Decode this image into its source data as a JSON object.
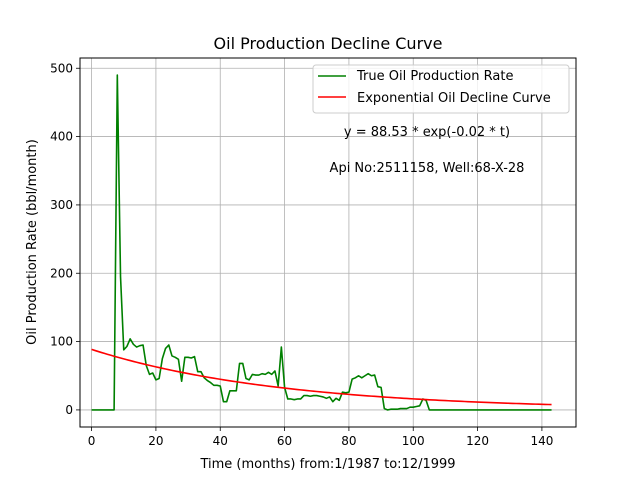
{
  "chart_data": {
    "type": "line",
    "title": "Oil Production Decline Curve",
    "xlabel": "Time (months) from:1/1987 to:12/1999",
    "ylabel": "Oil Production Rate (bbl/month)",
    "xlim": [
      -3.6,
      150.6
    ],
    "ylim": [
      -25,
      515
    ],
    "xticks": [
      0,
      20,
      40,
      60,
      80,
      100,
      120,
      140
    ],
    "yticks": [
      0,
      100,
      200,
      300,
      400,
      500
    ],
    "grid": true,
    "legend_position": "top-right",
    "annotations": [
      "y = 88.53 * exp(-0.02 * t)",
      "Api No:2511158, Well:68-X-28"
    ],
    "series": [
      {
        "name": "True Oil Production Rate",
        "color": "#008000",
        "points": [
          [
            0,
            0
          ],
          [
            1,
            0
          ],
          [
            2,
            0
          ],
          [
            3,
            0
          ],
          [
            4,
            0
          ],
          [
            5,
            0
          ],
          [
            6,
            0
          ],
          [
            7,
            0
          ],
          [
            8,
            490
          ],
          [
            9,
            195
          ],
          [
            10,
            88
          ],
          [
            11,
            93
          ],
          [
            12,
            104
          ],
          [
            13,
            96
          ],
          [
            14,
            92
          ],
          [
            15,
            94
          ],
          [
            16,
            95
          ],
          [
            17,
            65
          ],
          [
            18,
            52
          ],
          [
            19,
            54
          ],
          [
            20,
            44
          ],
          [
            21,
            46
          ],
          [
            22,
            75
          ],
          [
            23,
            90
          ],
          [
            24,
            95
          ],
          [
            25,
            79
          ],
          [
            26,
            77
          ],
          [
            27,
            74
          ],
          [
            28,
            42
          ],
          [
            29,
            77
          ],
          [
            30,
            77
          ],
          [
            31,
            76
          ],
          [
            32,
            78
          ],
          [
            33,
            56
          ],
          [
            34,
            56
          ],
          [
            35,
            47
          ],
          [
            36,
            43
          ],
          [
            37,
            40
          ],
          [
            38,
            36
          ],
          [
            39,
            36
          ],
          [
            40,
            35
          ],
          [
            41,
            12
          ],
          [
            42,
            12
          ],
          [
            43,
            28
          ],
          [
            44,
            28
          ],
          [
            45,
            28
          ],
          [
            46,
            68
          ],
          [
            47,
            68
          ],
          [
            48,
            46
          ],
          [
            49,
            44
          ],
          [
            50,
            52
          ],
          [
            51,
            51
          ],
          [
            52,
            51
          ],
          [
            53,
            53
          ],
          [
            54,
            52
          ],
          [
            55,
            55
          ],
          [
            56,
            52
          ],
          [
            57,
            57
          ],
          [
            58,
            35
          ],
          [
            59,
            92
          ],
          [
            60,
            33
          ],
          [
            61,
            16
          ],
          [
            62,
            16
          ],
          [
            63,
            15
          ],
          [
            64,
            16
          ],
          [
            65,
            16
          ],
          [
            66,
            21
          ],
          [
            67,
            21
          ],
          [
            68,
            20
          ],
          [
            69,
            21
          ],
          [
            70,
            21
          ],
          [
            71,
            20
          ],
          [
            72,
            19
          ],
          [
            73,
            17
          ],
          [
            74,
            19
          ],
          [
            75,
            12
          ],
          [
            76,
            17
          ],
          [
            77,
            14
          ],
          [
            78,
            26
          ],
          [
            79,
            25
          ],
          [
            80,
            26
          ],
          [
            81,
            45
          ],
          [
            82,
            47
          ],
          [
            83,
            50
          ],
          [
            84,
            47
          ],
          [
            85,
            50
          ],
          [
            86,
            53
          ],
          [
            87,
            50
          ],
          [
            88,
            51
          ],
          [
            89,
            34
          ],
          [
            90,
            33
          ],
          [
            91,
            2
          ],
          [
            92,
            0
          ],
          [
            93,
            1
          ],
          [
            94,
            1
          ],
          [
            95,
            1
          ],
          [
            96,
            2
          ],
          [
            97,
            2
          ],
          [
            98,
            2
          ],
          [
            99,
            4
          ],
          [
            100,
            4
          ],
          [
            101,
            5
          ],
          [
            102,
            6
          ],
          [
            103,
            16
          ],
          [
            104,
            14
          ],
          [
            105,
            0
          ],
          [
            106,
            0
          ],
          [
            107,
            0
          ],
          [
            108,
            0
          ],
          [
            109,
            0
          ],
          [
            110,
            0
          ],
          [
            111,
            0
          ],
          [
            112,
            0
          ],
          [
            113,
            0
          ],
          [
            114,
            0
          ],
          [
            115,
            0
          ],
          [
            116,
            0
          ],
          [
            117,
            0
          ],
          [
            118,
            0
          ],
          [
            119,
            0
          ],
          [
            120,
            0
          ],
          [
            121,
            0
          ],
          [
            122,
            0
          ],
          [
            123,
            0
          ],
          [
            124,
            0
          ],
          [
            125,
            0
          ],
          [
            126,
            0
          ],
          [
            127,
            0
          ],
          [
            128,
            0
          ],
          [
            129,
            0
          ],
          [
            130,
            0
          ],
          [
            131,
            0
          ],
          [
            132,
            0
          ],
          [
            133,
            0
          ],
          [
            134,
            0
          ],
          [
            135,
            0
          ],
          [
            136,
            0
          ],
          [
            137,
            0
          ],
          [
            138,
            0
          ],
          [
            139,
            0
          ],
          [
            140,
            0
          ],
          [
            141,
            0
          ],
          [
            142,
            0
          ],
          [
            143,
            0
          ]
        ]
      },
      {
        "name": "Exponential Oil Decline Curve",
        "color": "#ff0000",
        "function": {
          "a": 88.53,
          "b": -0.017,
          "x_start": 0,
          "x_end": 143
        }
      }
    ]
  }
}
